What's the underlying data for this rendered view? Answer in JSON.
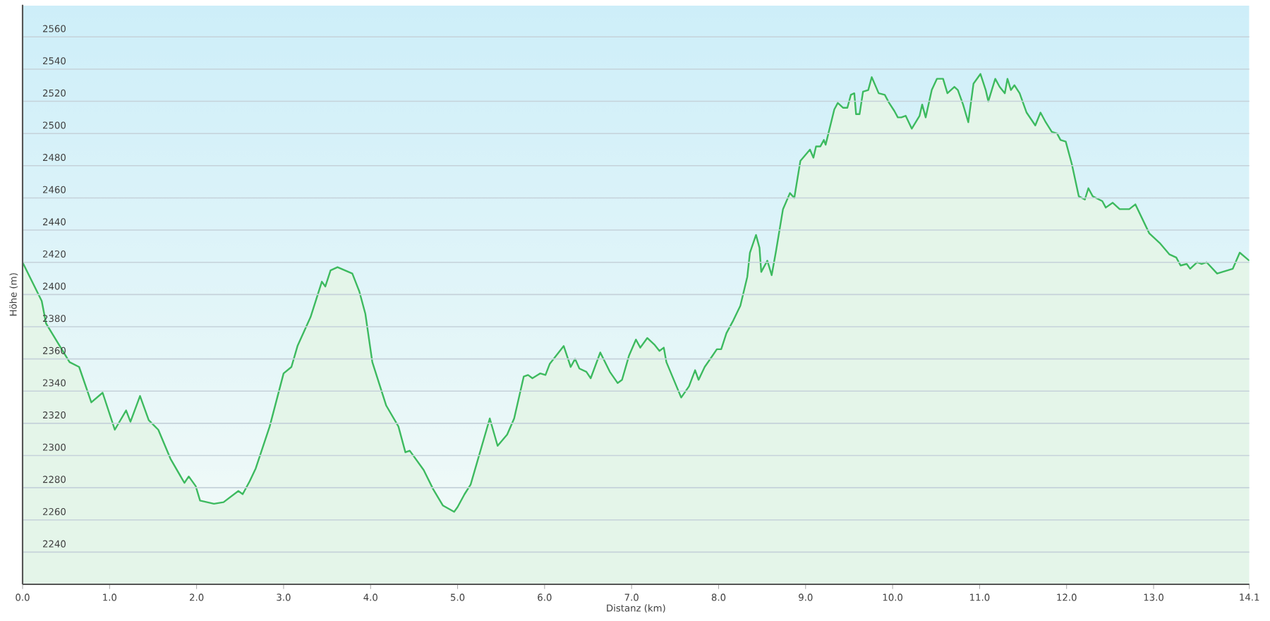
{
  "chart_data": {
    "type": "area",
    "xlabel": "Distanz  (km)",
    "ylabel": "Höhe (m)",
    "xlim": [
      0,
      14.1
    ],
    "ylim": [
      2220,
      2580
    ],
    "xticks": [
      {
        "value": 0,
        "label": "0.0"
      },
      {
        "value": 1,
        "label": "1.0"
      },
      {
        "value": 2,
        "label": "2.0"
      },
      {
        "value": 3,
        "label": "3.0"
      },
      {
        "value": 4,
        "label": "4.0"
      },
      {
        "value": 5,
        "label": "5.0"
      },
      {
        "value": 6,
        "label": "6.0"
      },
      {
        "value": 7,
        "label": "7.0"
      },
      {
        "value": 8,
        "label": "8.0"
      },
      {
        "value": 9,
        "label": "9.0"
      },
      {
        "value": 10,
        "label": "10.0"
      },
      {
        "value": 11,
        "label": "11.0"
      },
      {
        "value": 12,
        "label": "12.0"
      },
      {
        "value": 13,
        "label": "13.0"
      },
      {
        "value": 14.1,
        "label": "14.1"
      }
    ],
    "yticks": [
      2240,
      2260,
      2280,
      2300,
      2320,
      2340,
      2360,
      2380,
      2400,
      2420,
      2440,
      2460,
      2480,
      2500,
      2520,
      2540,
      2560
    ],
    "grid": "y",
    "series": [
      {
        "color": "#3dba5f",
        "x": [
          0,
          0.22,
          0.27,
          0.54,
          0.65,
          0.79,
          0.92,
          1.06,
          1.19,
          1.24,
          1.35,
          1.45,
          1.56,
          1.7,
          1.86,
          1.91,
          1.99,
          2.04,
          2.2,
          2.31,
          2.48,
          2.53,
          2.61,
          2.68,
          2.84,
          3.0,
          3.09,
          3.16,
          3.31,
          3.44,
          3.48,
          3.54,
          3.62,
          3.79,
          3.87,
          3.94,
          4.02,
          4.18,
          4.32,
          4.4,
          4.45,
          4.61,
          4.72,
          4.83,
          4.96,
          5.0,
          5.08,
          5.15,
          5.37,
          5.46,
          5.57,
          5.65,
          5.76,
          5.81,
          5.86,
          5.95,
          6.01,
          6.06,
          6.22,
          6.3,
          6.35,
          6.4,
          6.48,
          6.53,
          6.64,
          6.75,
          6.84,
          6.89,
          6.97,
          7.05,
          7.1,
          7.18,
          7.26,
          7.32,
          7.37,
          7.4,
          7.57,
          7.66,
          7.73,
          7.77,
          7.84,
          7.93,
          7.98,
          8.03,
          8.09,
          8.17,
          8.25,
          8.33,
          8.36,
          8.43,
          8.47,
          8.49,
          8.56,
          8.61,
          8.66,
          8.74,
          8.82,
          8.87,
          8.94,
          9.05,
          9.09,
          9.12,
          9.17,
          9.21,
          9.23,
          9.33,
          9.37,
          9.43,
          9.48,
          9.52,
          9.56,
          9.58,
          9.62,
          9.66,
          9.72,
          9.76,
          9.84,
          9.91,
          9.96,
          10.02,
          10.06,
          10.1,
          10.15,
          10.22,
          10.31,
          10.34,
          10.38,
          10.45,
          10.51,
          10.58,
          10.63,
          10.71,
          10.75,
          10.81,
          10.87,
          10.93,
          11.01,
          11.07,
          11.1,
          11.18,
          11.23,
          11.29,
          11.32,
          11.36,
          11.4,
          11.46,
          11.54,
          11.64,
          11.7,
          11.76,
          11.83,
          11.89,
          11.93,
          11.99,
          12.06,
          12.14,
          12.21,
          12.25,
          12.3,
          12.41,
          12.45,
          12.53,
          12.61,
          12.72,
          12.79,
          12.87,
          12.95,
          13.07,
          13.18,
          13.26,
          13.31,
          13.38,
          13.42,
          13.5,
          13.55,
          13.61,
          13.73,
          13.91,
          13.99,
          14.1
        ],
        "values": [
          2420,
          2396,
          2382,
          2358,
          2355,
          2333,
          2339,
          2316,
          2328,
          2321,
          2337,
          2322,
          2316,
          2298,
          2283,
          2287,
          2281,
          2272,
          2270,
          2271,
          2278,
          2276,
          2284,
          2292,
          2318,
          2351,
          2355,
          2368,
          2386,
          2408,
          2405,
          2415,
          2417,
          2413,
          2402,
          2388,
          2358,
          2331,
          2318,
          2302,
          2303,
          2291,
          2279,
          2269,
          2265,
          2268,
          2276,
          2282,
          2323,
          2306,
          2313,
          2323,
          2349,
          2350,
          2348,
          2351,
          2350,
          2357,
          2368,
          2355,
          2360,
          2354,
          2352,
          2348,
          2364,
          2352,
          2345,
          2347,
          2362,
          2372,
          2367,
          2373,
          2369,
          2365,
          2367,
          2358,
          2336,
          2343,
          2353,
          2347,
          2355,
          2362,
          2366,
          2366,
          2376,
          2384,
          2393,
          2411,
          2426,
          2437,
          2429,
          2414,
          2421,
          2412,
          2427,
          2453,
          2463,
          2460,
          2483,
          2490,
          2485,
          2492,
          2492,
          2496,
          2493,
          2515,
          2519,
          2516,
          2516,
          2524,
          2525,
          2512,
          2512,
          2526,
          2527,
          2535,
          2525,
          2524,
          2519,
          2514,
          2510,
          2510,
          2511,
          2503,
          2511,
          2518,
          2510,
          2527,
          2534,
          2534,
          2525,
          2529,
          2527,
          2518,
          2507,
          2531,
          2537,
          2527,
          2520,
          2534,
          2529,
          2525,
          2534,
          2527,
          2530,
          2525,
          2513,
          2505,
          2513,
          2507,
          2501,
          2500,
          2496,
          2495,
          2481,
          2461,
          2459,
          2466,
          2461,
          2458,
          2454,
          2457,
          2453,
          2453,
          2456,
          2447,
          2438,
          2432,
          2425,
          2423,
          2418,
          2419,
          2416,
          2420,
          2419,
          2420,
          2413,
          2416,
          2426,
          2421
        ]
      }
    ]
  }
}
